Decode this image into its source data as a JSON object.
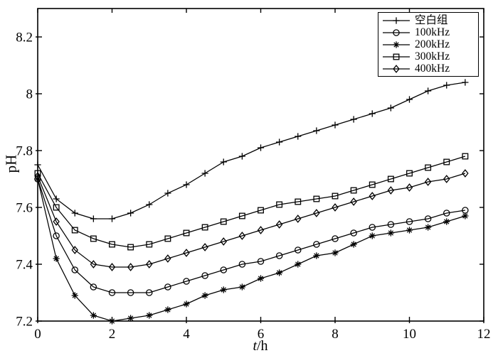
{
  "figure": {
    "background": "#ffffff",
    "line_color": "#000000",
    "text_color": "#000000"
  },
  "chart_data": {
    "type": "line",
    "title": "",
    "xlabel": "t/h",
    "xlabel_symbol": "t",
    "xlabel_unit": "/h",
    "ylabel": "pH",
    "xlim": [
      0,
      12
    ],
    "ylim": [
      7.2,
      8.3
    ],
    "xticks": [
      0,
      2,
      4,
      6,
      8,
      10,
      12
    ],
    "xtick_labels": [
      "0",
      "2",
      "4",
      "6",
      "8",
      "10",
      "12"
    ],
    "yticks": [
      7.2,
      7.4,
      7.6,
      7.8,
      8.0,
      8.2
    ],
    "ytick_labels": [
      "7.2",
      "7.4",
      "7.6",
      "7.8",
      "8",
      "8.2"
    ],
    "grid": false,
    "box": true,
    "legend_position": "top-right",
    "x": [
      0,
      0.5,
      1,
      1.5,
      2,
      2.5,
      3,
      3.5,
      4,
      4.5,
      5,
      5.5,
      6,
      6.5,
      7,
      7.5,
      8,
      8.5,
      9,
      9.5,
      10,
      10.5,
      11,
      11.5
    ],
    "series": [
      {
        "name": "空白组",
        "marker": "plus",
        "values": [
          7.75,
          7.63,
          7.58,
          7.56,
          7.56,
          7.58,
          7.61,
          7.65,
          7.68,
          7.72,
          7.76,
          7.78,
          7.81,
          7.83,
          7.85,
          7.87,
          7.89,
          7.91,
          7.93,
          7.95,
          7.98,
          8.01,
          8.03,
          8.04
        ]
      },
      {
        "name": "100kHz",
        "marker": "circle",
        "values": [
          7.7,
          7.5,
          7.38,
          7.32,
          7.3,
          7.3,
          7.3,
          7.32,
          7.34,
          7.36,
          7.38,
          7.4,
          7.41,
          7.43,
          7.45,
          7.47,
          7.49,
          7.51,
          7.53,
          7.54,
          7.55,
          7.56,
          7.58,
          7.59
        ]
      },
      {
        "name": "200kHz",
        "marker": "asterisk",
        "values": [
          7.7,
          7.42,
          7.29,
          7.22,
          7.2,
          7.21,
          7.22,
          7.24,
          7.26,
          7.29,
          7.31,
          7.32,
          7.35,
          7.37,
          7.4,
          7.43,
          7.44,
          7.47,
          7.5,
          7.51,
          7.52,
          7.53,
          7.55,
          7.57
        ]
      },
      {
        "name": "300kHz",
        "marker": "square",
        "values": [
          7.72,
          7.6,
          7.52,
          7.49,
          7.47,
          7.46,
          7.47,
          7.49,
          7.51,
          7.53,
          7.55,
          7.57,
          7.59,
          7.61,
          7.62,
          7.63,
          7.64,
          7.66,
          7.68,
          7.7,
          7.72,
          7.74,
          7.76,
          7.78
        ]
      },
      {
        "name": "400kHz",
        "marker": "diamond",
        "values": [
          7.71,
          7.55,
          7.45,
          7.4,
          7.39,
          7.39,
          7.4,
          7.42,
          7.44,
          7.46,
          7.48,
          7.5,
          7.52,
          7.54,
          7.56,
          7.58,
          7.6,
          7.62,
          7.64,
          7.66,
          7.67,
          7.69,
          7.7,
          7.72
        ]
      }
    ]
  }
}
